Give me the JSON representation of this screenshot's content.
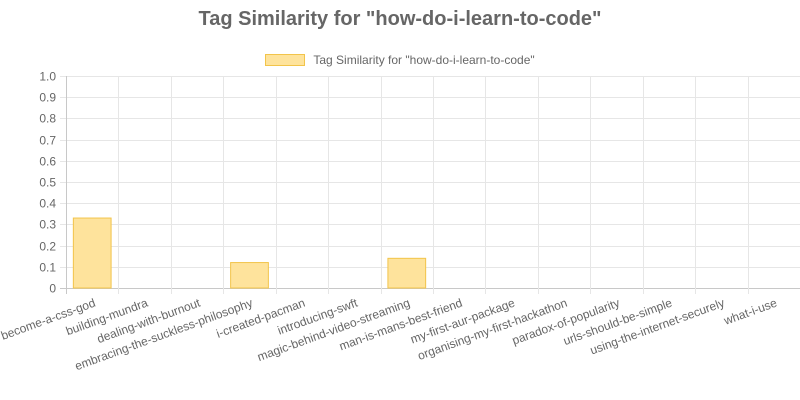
{
  "chart_data": {
    "type": "bar",
    "title": "Tag Similarity for \"how-do-i-learn-to-code\"",
    "xlabel": "",
    "ylabel": "",
    "ylim": [
      0,
      1.0
    ],
    "yticks": [
      "0",
      "0.1",
      "0.2",
      "0.3",
      "0.4",
      "0.5",
      "0.6",
      "0.7",
      "0.8",
      "0.9",
      "1.0"
    ],
    "grid": true,
    "legend_position": "top",
    "categories": [
      "become-a-css-god",
      "building-mundra",
      "dealing-with-burnout",
      "embracing-the-suckless-philosophy",
      "i-created-pacman",
      "introducing-swft",
      "magic-behind-video-streaming",
      "man-is-mans-best-friend",
      "my-first-aur-package",
      "organising-my-first-hackathon",
      "paradox-of-popularity",
      "urls-should-be-simple",
      "using-the-internet-securely",
      "what-i-use"
    ],
    "series": [
      {
        "name": "Tag Similarity for \"how-do-i-learn-to-code\"",
        "values": [
          0.33,
          0,
          0,
          0.12,
          0,
          0,
          0.14,
          0,
          0,
          0,
          0,
          0,
          0,
          0
        ],
        "fill_color": "#fee39c",
        "border_color": "#f2c44a"
      }
    ]
  }
}
